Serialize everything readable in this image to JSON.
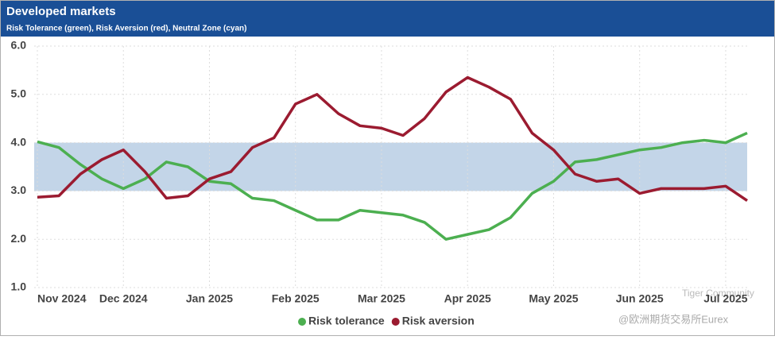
{
  "chart_data": {
    "type": "line",
    "title": "Developed markets",
    "subtitle": "Risk Tolerance (green), Risk Aversion (red), Neutral Zone (cyan)",
    "categories": [
      "Nov 2024",
      null,
      null,
      null,
      "Dec 2024",
      null,
      null,
      null,
      "Jan 2025",
      null,
      null,
      null,
      "Feb 2025",
      null,
      null,
      null,
      "Mar 2025",
      null,
      null,
      null,
      "Apr 2025",
      null,
      null,
      null,
      "May 2025",
      null,
      null,
      null,
      "Jun 2025",
      null,
      null,
      null,
      "Jul 2025",
      null
    ],
    "series": [
      {
        "name": "Risk tolerance",
        "color": "#4caf50",
        "values": [
          4.02,
          3.9,
          3.55,
          3.25,
          3.05,
          3.25,
          3.6,
          3.5,
          3.2,
          3.15,
          2.85,
          2.8,
          2.6,
          2.4,
          2.4,
          2.6,
          2.55,
          2.5,
          2.35,
          2.0,
          2.1,
          2.2,
          2.45,
          2.95,
          3.2,
          3.6,
          3.65,
          3.75,
          3.85,
          3.9,
          4.0,
          4.05,
          4.0,
          4.2
        ]
      },
      {
        "name": "Risk aversion",
        "color": "#9b1b30",
        "values": [
          2.87,
          2.9,
          3.35,
          3.65,
          3.85,
          3.4,
          2.85,
          2.9,
          3.25,
          3.4,
          3.9,
          4.1,
          4.8,
          5.0,
          4.6,
          4.35,
          4.3,
          4.15,
          4.5,
          5.05,
          5.35,
          5.15,
          4.9,
          4.2,
          3.85,
          3.35,
          3.2,
          3.25,
          2.95,
          3.05,
          3.05,
          3.05,
          3.1,
          2.8
        ]
      }
    ],
    "neutral_zone": [
      3,
      4
    ],
    "neutral_color": "#c3d5e8",
    "ylim": [
      1,
      6
    ],
    "yticks": [
      {
        "value": 1,
        "label": "1.0"
      },
      {
        "value": 2,
        "label": "2.0"
      },
      {
        "value": 3,
        "label": "3.0"
      },
      {
        "value": 4,
        "label": "4.0"
      },
      {
        "value": 5,
        "label": "5.0"
      },
      {
        "value": 6,
        "label": "6.0"
      }
    ],
    "grid": true,
    "legend": "bottom",
    "annotations": [
      "Tiger Community",
      "@欧洲期货交易所Eurex"
    ]
  }
}
